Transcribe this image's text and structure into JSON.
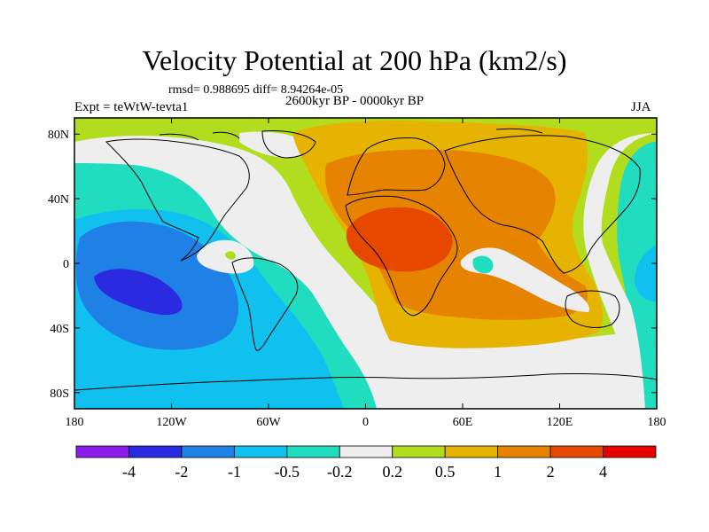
{
  "title": "Velocity Potential at 200 hPa (km2/s)",
  "stats": "rmsd= 0.988695 diff= 8.94264e-05",
  "experiment": "Expt = teWtW-tevta1",
  "period": "2600kyr BP - 0000kyr BP",
  "season": "JJA",
  "axes": {
    "x_ticks": [
      {
        "label": "180",
        "lon": -180
      },
      {
        "label": "120W",
        "lon": -120
      },
      {
        "label": "60W",
        "lon": -60
      },
      {
        "label": "0",
        "lon": 0
      },
      {
        "label": "60E",
        "lon": 60
      },
      {
        "label": "120E",
        "lon": 120
      },
      {
        "label": "180",
        "lon": 180
      }
    ],
    "y_ticks": [
      {
        "label": "80N",
        "lat": 80
      },
      {
        "label": "40N",
        "lat": 40
      },
      {
        "label": "0",
        "lat": 0
      },
      {
        "label": "40S",
        "lat": -40
      },
      {
        "label": "80S",
        "lat": -80
      }
    ]
  },
  "colorbar": {
    "colors": [
      "#8c1eec",
      "#2a2ae0",
      "#1f80e6",
      "#10c0ee",
      "#20ddc0",
      "#eeeeee",
      "#b2dd1e",
      "#e6b400",
      "#e68300",
      "#e64800",
      "#e60000"
    ],
    "labels": [
      "-4",
      "-2",
      "-1",
      "-0.5",
      "-0.2",
      "0.2",
      "0.5",
      "1",
      "2",
      "4"
    ]
  },
  "colors": {
    "frame": "#000000",
    "coast": "#000000"
  }
}
